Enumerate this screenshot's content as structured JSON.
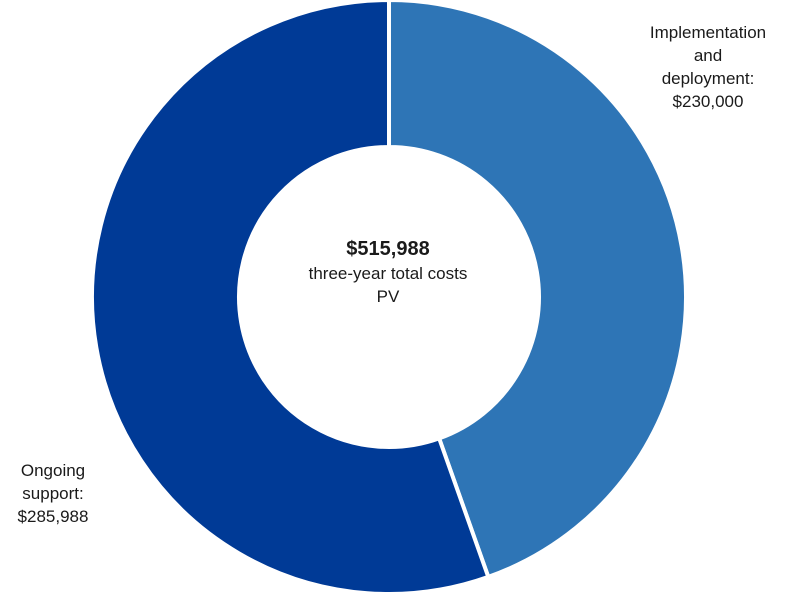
{
  "chart_data": {
    "type": "pie",
    "variant": "donut",
    "center_text": {
      "total": "$515,988",
      "line1": "three-year total costs",
      "line2": "PV"
    },
    "slices": [
      {
        "label_lines": [
          "Implementation",
          "and",
          "deployment:",
          "$230,000"
        ],
        "value": 230000,
        "color": "#2E75B6"
      },
      {
        "label_lines": [
          "Ongoing",
          "support:",
          "$285,988"
        ],
        "value": 285988,
        "color": "#003A96"
      }
    ],
    "legend": "none"
  }
}
